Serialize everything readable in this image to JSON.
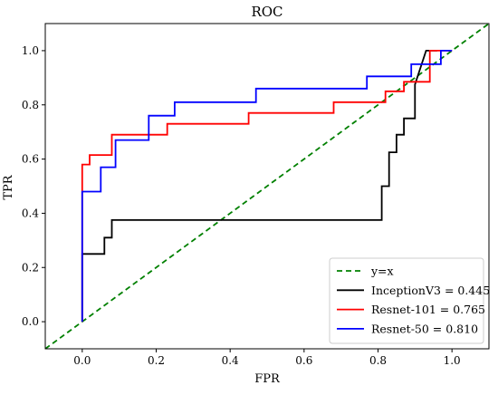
{
  "chart_data": {
    "type": "line",
    "title": "ROC",
    "xlabel": "FPR",
    "ylabel": "TPR",
    "xlim": [
      -0.1,
      1.1
    ],
    "ylim": [
      -0.1,
      1.1
    ],
    "xticks": [
      "0.0",
      "0.2",
      "0.4",
      "0.6",
      "0.8",
      "1.0"
    ],
    "yticks": [
      "0.0",
      "0.2",
      "0.4",
      "0.6",
      "0.8",
      "1.0"
    ],
    "grid": false,
    "legend_position": "bottom-right",
    "series": [
      {
        "name": "y=x",
        "color": "#008000",
        "dash": "dashed",
        "x": [
          -0.1,
          1.1
        ],
        "y": [
          -0.1,
          1.1
        ]
      },
      {
        "name": "InceptionV3 = 0.445",
        "color": "#000000",
        "dash": "solid",
        "x": [
          0,
          0,
          0.06,
          0.06,
          0.08,
          0.08,
          0.81,
          0.81,
          0.83,
          0.83,
          0.85,
          0.85,
          0.87,
          0.87,
          0.9,
          0.9,
          0.93,
          0.96
        ],
        "y": [
          0,
          0.25,
          0.25,
          0.31,
          0.31,
          0.375,
          0.375,
          0.5,
          0.5,
          0.625,
          0.625,
          0.69,
          0.69,
          0.75,
          0.75,
          0.875,
          1.0,
          1.0
        ]
      },
      {
        "name": "Resnet-101 = 0.765",
        "color": "#ff0000",
        "dash": "solid",
        "x": [
          0,
          0,
          0.02,
          0.02,
          0.08,
          0.08,
          0.23,
          0.23,
          0.45,
          0.45,
          0.68,
          0.68,
          0.82,
          0.82,
          0.87,
          0.87,
          0.94,
          0.94,
          0.96,
          1.0
        ],
        "y": [
          0,
          0.58,
          0.58,
          0.615,
          0.615,
          0.69,
          0.69,
          0.73,
          0.73,
          0.77,
          0.77,
          0.81,
          0.81,
          0.85,
          0.85,
          0.885,
          0.885,
          1.0,
          1.0,
          1.0
        ]
      },
      {
        "name": "Resnet-50 = 0.810",
        "color": "#0000ff",
        "dash": "solid",
        "x": [
          0,
          0,
          0.05,
          0.05,
          0.09,
          0.09,
          0.18,
          0.18,
          0.25,
          0.25,
          0.47,
          0.47,
          0.77,
          0.77,
          0.89,
          0.89,
          0.95,
          0.95,
          0.97,
          0.97,
          1.0
        ],
        "y": [
          0,
          0.48,
          0.48,
          0.57,
          0.57,
          0.67,
          0.67,
          0.76,
          0.76,
          0.81,
          0.81,
          0.86,
          0.86,
          0.905,
          0.905,
          0.95,
          0.95,
          0.95,
          0.95,
          1.0,
          1.0
        ]
      }
    ]
  }
}
